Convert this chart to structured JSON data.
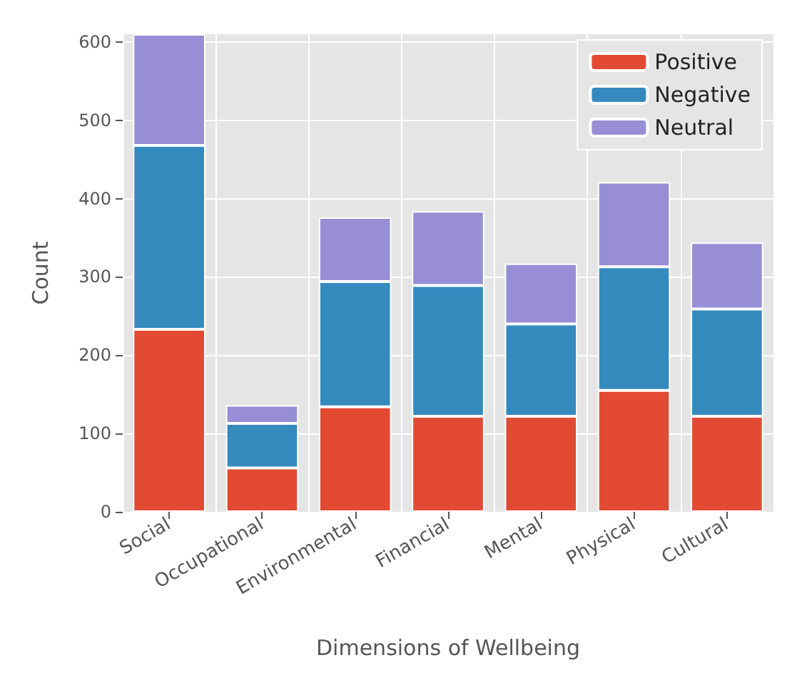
{
  "chart_data": {
    "type": "bar",
    "stacked": true,
    "xlabel": "Dimensions of Wellbeing",
    "ylabel": "Count",
    "categories": [
      "Social",
      "Occupational",
      "Environmental",
      "Financial",
      "Mental",
      "Physical",
      "Cultural"
    ],
    "series": [
      {
        "name": "Positive",
        "color": "#e24a33",
        "values": [
          233,
          56,
          134,
          122,
          122,
          155,
          122
        ]
      },
      {
        "name": "Negative",
        "color": "#348abd",
        "values": [
          235,
          57,
          160,
          167,
          118,
          158,
          137
        ]
      },
      {
        "name": "Neutral",
        "color": "#988ed5",
        "values": [
          142,
          23,
          82,
          95,
          77,
          108,
          85
        ]
      }
    ],
    "ylim": [
      0,
      610
    ],
    "yticks": [
      0,
      100,
      200,
      300,
      400,
      500,
      600
    ],
    "grid": true,
    "legend": "top right"
  }
}
